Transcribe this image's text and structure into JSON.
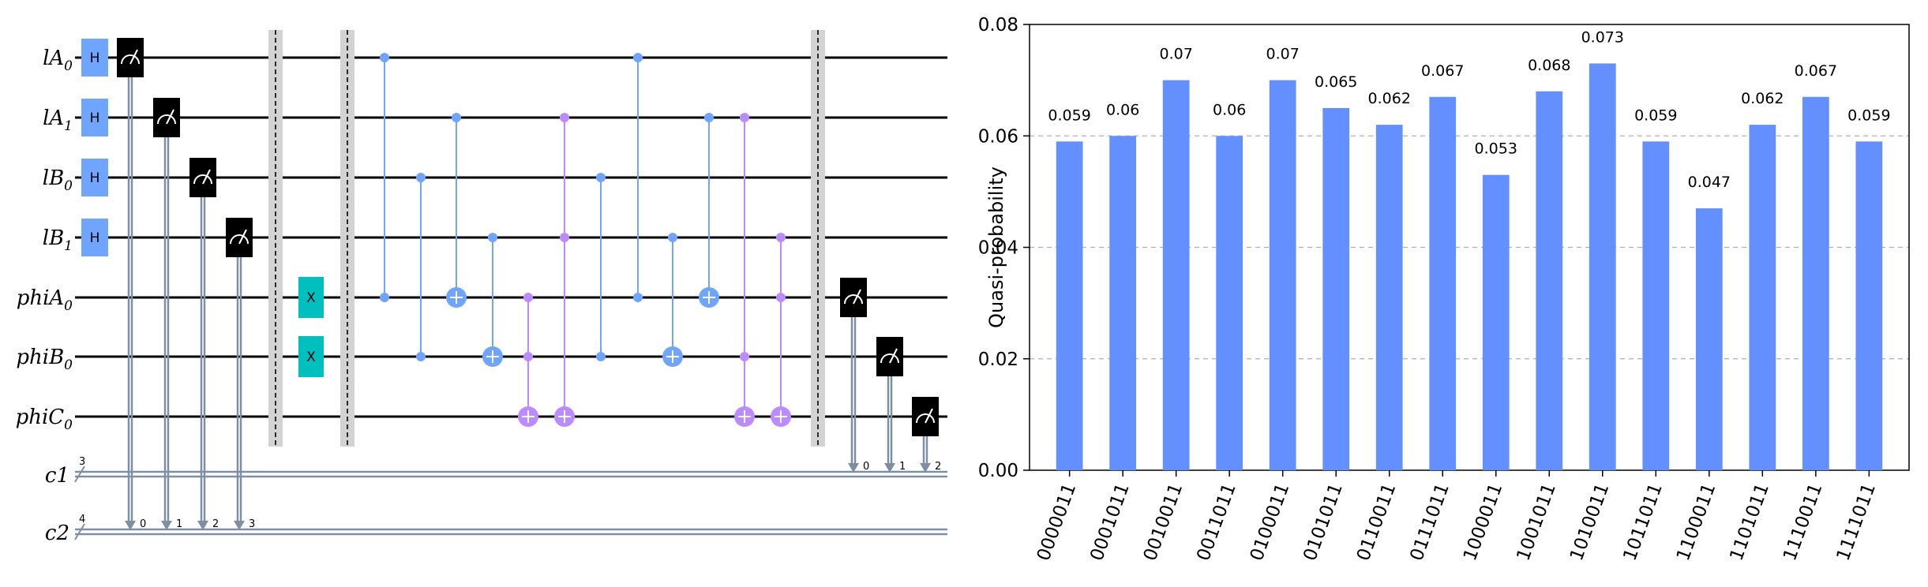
{
  "circuit": {
    "qubit_labels": [
      {
        "base": "lA",
        "sub": "0"
      },
      {
        "base": "lA",
        "sub": "1"
      },
      {
        "base": "lB",
        "sub": "0"
      },
      {
        "base": "lB",
        "sub": "1"
      },
      {
        "base": "phiA",
        "sub": "0"
      },
      {
        "base": "phiB",
        "sub": "0"
      },
      {
        "base": "phiC",
        "sub": "0"
      }
    ],
    "classical_registers": [
      {
        "name": "c1",
        "size": "3",
        "bit_labels": [
          "0",
          "1",
          "2"
        ]
      },
      {
        "name": "c2",
        "size": "4",
        "bit_labels": [
          "0",
          "1",
          "2",
          "3"
        ]
      }
    ],
    "h_label": "H",
    "x_label": "X",
    "colors": {
      "h_gate": "#6fa4ff",
      "x_gate": "#00bfbf",
      "cx_blue": "#6fa4ff",
      "ccx_purple": "#bb8bff",
      "classical_wire": "#7f8fa3"
    }
  },
  "chart_data": {
    "type": "bar",
    "title": "",
    "xlabel": "",
    "ylabel": "Quasi-probability",
    "ylim": [
      0,
      0.08
    ],
    "yticks": [
      "0.00",
      "0.02",
      "0.04",
      "0.06",
      "0.08"
    ],
    "grid": true,
    "color": "#648fff",
    "categories": [
      "0000011",
      "0001011",
      "0010011",
      "0011011",
      "0100011",
      "0101011",
      "0110011",
      "0111011",
      "1000011",
      "1001011",
      "1010011",
      "1011011",
      "1100011",
      "1101011",
      "1110011",
      "1111011"
    ],
    "values": [
      0.059,
      0.06,
      0.07,
      0.06,
      0.07,
      0.065,
      0.062,
      0.067,
      0.053,
      0.068,
      0.073,
      0.059,
      0.047,
      0.062,
      0.067,
      0.059
    ],
    "value_labels": [
      "0.059",
      "0.06",
      "0.07",
      "0.06",
      "0.07",
      "0.065",
      "0.062",
      "0.067",
      "0.053",
      "0.068",
      "0.073",
      "0.059",
      "0.047",
      "0.062",
      "0.067",
      "0.059"
    ]
  }
}
